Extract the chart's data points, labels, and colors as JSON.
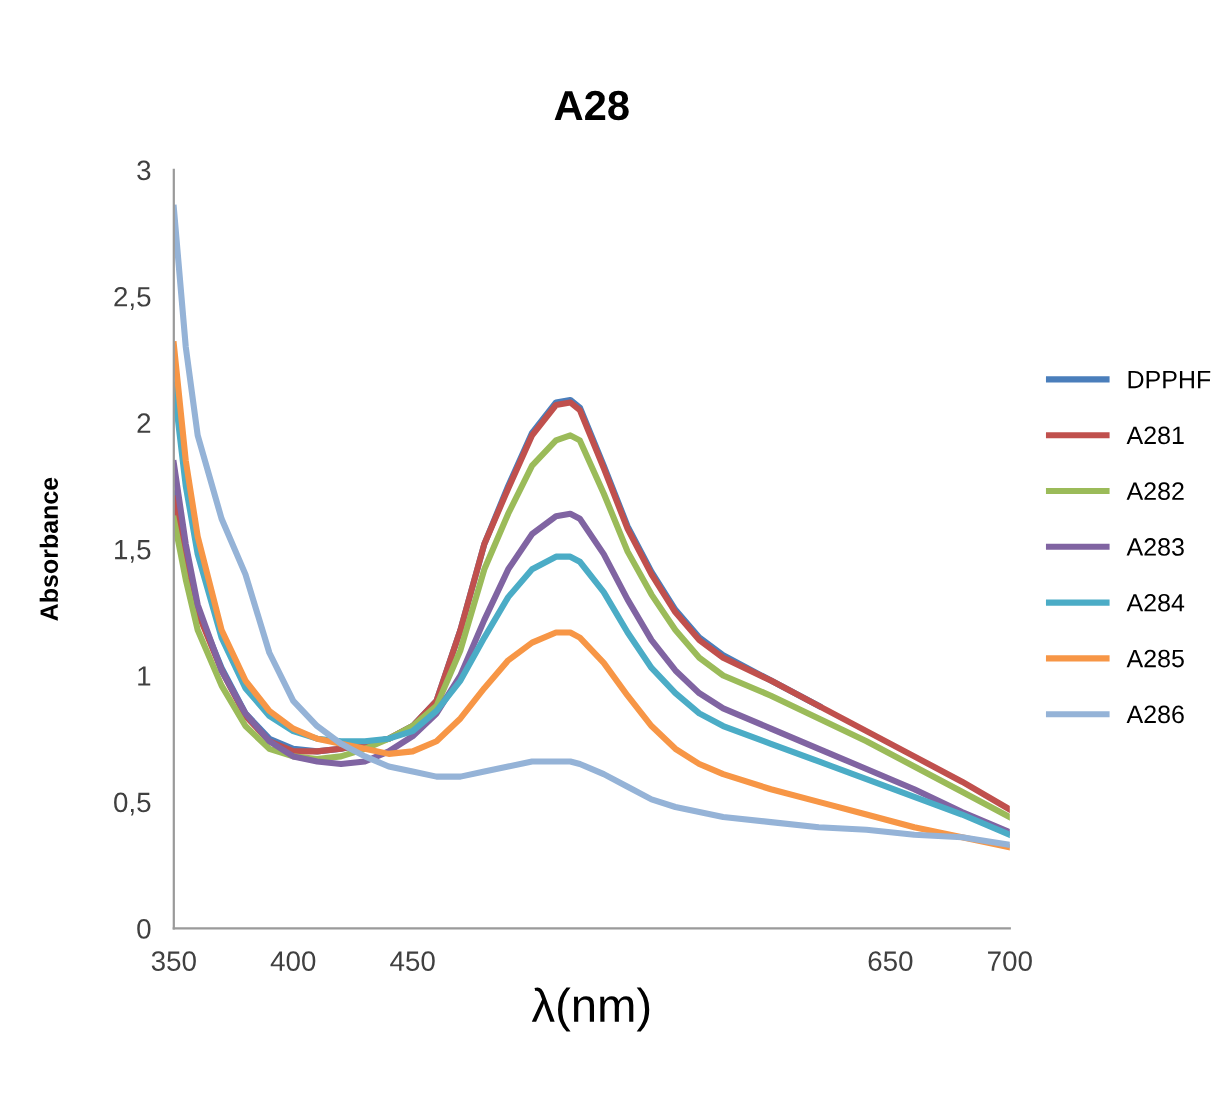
{
  "chart_data": {
    "type": "line",
    "title": "A28",
    "xlabel": "λ(nm)",
    "ylabel": "Absorbance",
    "x": [
      350,
      355,
      360,
      370,
      380,
      390,
      400,
      410,
      420,
      430,
      440,
      450,
      460,
      470,
      480,
      490,
      500,
      510,
      516,
      520,
      530,
      540,
      550,
      560,
      570,
      580,
      600,
      620,
      640,
      660,
      680,
      700
    ],
    "series": [
      {
        "name": "DPPHF",
        "color": "#4a7ebb",
        "values": [
          1.72,
          1.47,
          1.26,
          1.03,
          0.85,
          0.75,
          0.71,
          0.7,
          0.71,
          0.73,
          0.75,
          0.8,
          0.9,
          1.18,
          1.52,
          1.75,
          1.96,
          2.08,
          2.09,
          2.06,
          1.83,
          1.59,
          1.41,
          1.26,
          1.15,
          1.08,
          0.98,
          0.88,
          null,
          null,
          null,
          null
        ]
      },
      {
        "name": "A281",
        "color": "#c0504d",
        "values": [
          1.7,
          1.45,
          1.25,
          1.02,
          0.84,
          0.74,
          0.7,
          0.7,
          0.71,
          0.73,
          0.75,
          0.8,
          0.9,
          1.18,
          1.52,
          1.74,
          1.95,
          2.07,
          2.08,
          2.05,
          1.82,
          1.58,
          1.4,
          1.25,
          1.14,
          1.07,
          0.98,
          0.88,
          0.78,
          0.68,
          0.58,
          0.47
        ]
      },
      {
        "name": "A282",
        "color": "#9bbb59",
        "values": [
          1.62,
          1.38,
          1.18,
          0.96,
          0.8,
          0.71,
          0.68,
          0.67,
          0.68,
          0.71,
          0.75,
          0.8,
          0.88,
          1.1,
          1.42,
          1.64,
          1.83,
          1.93,
          1.95,
          1.93,
          1.72,
          1.49,
          1.32,
          1.18,
          1.07,
          1.0,
          0.92,
          0.83,
          0.74,
          0.64,
          0.54,
          0.44
        ]
      },
      {
        "name": "A283",
        "color": "#8064a2",
        "values": [
          1.84,
          1.52,
          1.28,
          1.02,
          0.85,
          0.74,
          0.68,
          0.66,
          0.65,
          0.66,
          0.7,
          0.76,
          0.85,
          1.0,
          1.22,
          1.42,
          1.56,
          1.63,
          1.64,
          1.62,
          1.48,
          1.3,
          1.14,
          1.02,
          0.93,
          0.87,
          0.79,
          0.71,
          0.63,
          0.55,
          0.46,
          0.38
        ]
      },
      {
        "name": "A284",
        "color": "#4bacc6",
        "values": [
          2.15,
          1.75,
          1.48,
          1.15,
          0.95,
          0.84,
          0.78,
          0.75,
          0.74,
          0.74,
          0.75,
          0.78,
          0.86,
          0.98,
          1.15,
          1.31,
          1.42,
          1.47,
          1.47,
          1.45,
          1.33,
          1.17,
          1.03,
          0.93,
          0.85,
          0.8,
          0.73,
          0.66,
          0.59,
          0.52,
          0.45,
          0.37
        ]
      },
      {
        "name": "A285",
        "color": "#f79646",
        "values": [
          2.31,
          1.85,
          1.55,
          1.18,
          0.98,
          0.86,
          0.79,
          0.75,
          0.73,
          0.71,
          0.69,
          0.7,
          0.74,
          0.83,
          0.95,
          1.06,
          1.13,
          1.17,
          1.17,
          1.15,
          1.05,
          0.92,
          0.8,
          0.71,
          0.65,
          0.61,
          0.55,
          0.5,
          0.45,
          0.4,
          0.36,
          0.32
        ]
      },
      {
        "name": "A286",
        "color": "#95b3d7",
        "values": [
          2.85,
          2.3,
          1.95,
          1.62,
          1.4,
          1.09,
          0.9,
          0.8,
          0.73,
          0.68,
          0.64,
          0.62,
          0.6,
          0.6,
          0.62,
          0.64,
          0.66,
          0.66,
          0.66,
          0.65,
          0.61,
          0.56,
          0.51,
          0.48,
          0.46,
          0.44,
          0.42,
          0.4,
          0.39,
          0.37,
          0.36,
          0.33
        ]
      }
    ],
    "xlim": [
      350,
      700
    ],
    "xticks": [
      350,
      400,
      450,
      {
        "value": 650,
        "label": "650"
      },
      700
    ],
    "ylim": [
      0,
      3
    ],
    "yticks": [
      0,
      {
        "value": 0.5,
        "label": "0,5"
      },
      1,
      {
        "value": 1.5,
        "label": "1,5"
      },
      2,
      {
        "value": 2.5,
        "label": "2,5"
      },
      3
    ],
    "legend": "right",
    "grid": false,
    "marker": "none",
    "line_style": "solid"
  }
}
